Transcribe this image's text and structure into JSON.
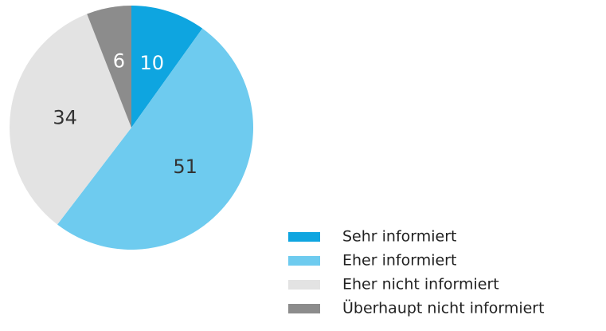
{
  "chart_data": {
    "type": "pie",
    "categories": [
      "Sehr informiert",
      "Eher informiert",
      "Eher nicht informiert",
      "Überhaupt nicht informiert"
    ],
    "values": [
      10,
      51,
      34,
      6
    ],
    "colors": [
      "#0ea5e0",
      "#6ecbef",
      "#e3e3e3",
      "#8c8c8c"
    ],
    "label_colors": [
      "#ffffff",
      "#333333",
      "#333333",
      "#ffffff"
    ],
    "legend": "bottom-right"
  }
}
